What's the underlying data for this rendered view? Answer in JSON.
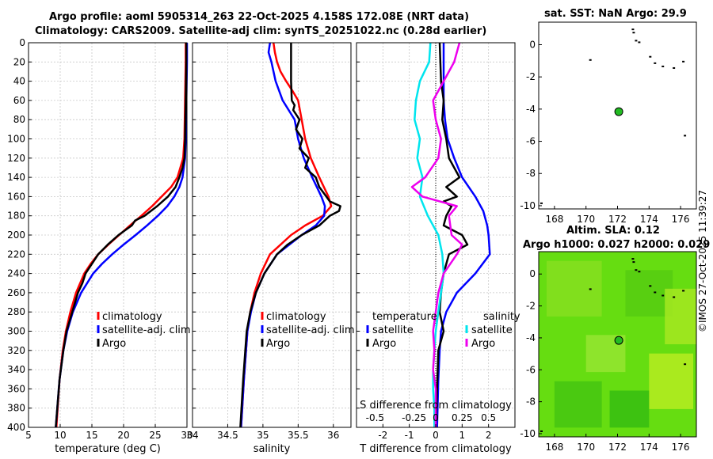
{
  "header": {
    "title_line1": "Argo profile: aoml 5905314_263 22-Oct-2025 4.158S 172.08E (NRT data)",
    "title_line2": "Climatology: CARS2009. Satellite-adj clim: synTS_20251022.nc (0.28d earlier)",
    "sst_title": "sat. SST: NaN Argo: 29.9",
    "sla_title1": "Altim. SLA: 0.12",
    "sla_title2": "Argo h1000: 0.027 h2000: 0.029",
    "copyright": "©IMOS 27-Oct-2025 11:39:27"
  },
  "colors": {
    "climatology": "#ff0000",
    "satellite": "#0000ff",
    "argo": "#000000",
    "temp_diff": "#00e5ee",
    "sal_diff": "#ee00ee",
    "float_marker": "#22bb22"
  },
  "chart_data": [
    {
      "type": "line",
      "id": "temperature",
      "xlabel": "temperature (deg C)",
      "ylabel": "depth",
      "xlim": [
        5,
        30
      ],
      "ylim": [
        400,
        0
      ],
      "xticks": [
        5,
        10,
        15,
        20,
        25,
        30
      ],
      "yticks": [
        0,
        20,
        40,
        60,
        80,
        100,
        120,
        140,
        160,
        180,
        200,
        220,
        240,
        260,
        280,
        300,
        320,
        340,
        360,
        380,
        400
      ],
      "legend": [
        "climatology",
        "satellite-adj. clim",
        "Argo"
      ],
      "series": [
        {
          "name": "climatology",
          "depth": [
            0,
            20,
            60,
            100,
            120,
            140,
            150,
            160,
            170,
            180,
            190,
            200,
            210,
            220,
            230,
            240,
            260,
            280,
            300,
            320,
            350,
            400
          ],
          "values": [
            29.8,
            29.8,
            29.7,
            29.6,
            29.4,
            28.5,
            27.5,
            26.0,
            24.5,
            22.8,
            21.0,
            19.3,
            17.6,
            16.0,
            14.8,
            13.8,
            12.5,
            11.6,
            10.9,
            10.4,
            9.9,
            9.4
          ]
        },
        {
          "name": "satellite-adj. clim",
          "depth": [
            0,
            20,
            60,
            100,
            120,
            140,
            150,
            160,
            170,
            180,
            190,
            200,
            210,
            220,
            230,
            240,
            260,
            280,
            300,
            320,
            350,
            400
          ],
          "values": [
            30.0,
            30.0,
            29.9,
            29.8,
            29.7,
            29.3,
            28.8,
            28.0,
            26.9,
            25.4,
            23.7,
            21.9,
            20.0,
            18.2,
            16.6,
            15.2,
            13.3,
            12.0,
            11.1,
            10.5,
            9.9,
            9.3
          ]
        },
        {
          "name": "Argo",
          "depth": [
            0,
            20,
            60,
            100,
            120,
            130,
            140,
            150,
            160,
            170,
            180,
            185,
            190,
            200,
            210,
            220,
            230,
            240,
            250,
            260,
            280,
            300,
            320,
            350,
            400
          ],
          "values": [
            29.9,
            29.9,
            29.8,
            29.7,
            29.6,
            29.3,
            28.8,
            28.2,
            27.0,
            25.3,
            23.3,
            21.8,
            21.3,
            19.2,
            17.5,
            16.0,
            15.0,
            14.0,
            13.5,
            12.8,
            11.9,
            11.0,
            10.5,
            9.9,
            9.3
          ]
        }
      ]
    },
    {
      "type": "line",
      "id": "salinity",
      "xlabel": "salinity",
      "xlim": [
        34,
        36.25
      ],
      "ylim": [
        400,
        0
      ],
      "xticks": [
        34,
        34.5,
        35,
        35.5,
        36
      ],
      "legend": [
        "climatology",
        "satellite-adj. clim",
        "Argo"
      ],
      "series": [
        {
          "name": "climatology",
          "depth": [
            0,
            10,
            20,
            30,
            40,
            50,
            60,
            80,
            100,
            120,
            140,
            160,
            170,
            180,
            190,
            200,
            220,
            240,
            260,
            280,
            300,
            350,
            400
          ],
          "values": [
            35.15,
            35.17,
            35.2,
            35.25,
            35.33,
            35.42,
            35.5,
            35.55,
            35.6,
            35.68,
            35.8,
            35.93,
            35.97,
            35.85,
            35.6,
            35.4,
            35.1,
            34.97,
            34.88,
            34.82,
            34.78,
            34.73,
            34.69
          ]
        },
        {
          "name": "satellite-adj. clim",
          "depth": [
            0,
            10,
            20,
            40,
            60,
            80,
            100,
            120,
            140,
            160,
            170,
            180,
            190,
            200,
            220,
            240,
            260,
            280,
            300,
            350,
            400
          ],
          "values": [
            35.1,
            35.08,
            35.12,
            35.18,
            35.28,
            35.45,
            35.5,
            35.58,
            35.7,
            35.83,
            35.88,
            35.87,
            35.75,
            35.55,
            35.2,
            35.02,
            34.9,
            34.83,
            34.78,
            34.73,
            34.69
          ]
        },
        {
          "name": "Argo",
          "depth": [
            0,
            20,
            40,
            60,
            65,
            70,
            80,
            90,
            100,
            110,
            120,
            130,
            140,
            150,
            160,
            165,
            170,
            175,
            180,
            190,
            200,
            210,
            220,
            240,
            260,
            280,
            300,
            350,
            400
          ],
          "values": [
            35.4,
            35.4,
            35.4,
            35.41,
            35.45,
            35.43,
            35.52,
            35.47,
            35.56,
            35.52,
            35.65,
            35.6,
            35.75,
            35.8,
            35.9,
            35.95,
            36.1,
            36.08,
            35.95,
            35.8,
            35.55,
            35.35,
            35.2,
            35.02,
            34.9,
            34.82,
            34.77,
            34.72,
            34.68
          ]
        }
      ]
    },
    {
      "type": "line",
      "id": "difference",
      "xlabel": "T difference from climatology",
      "xlabel_top": "S difference from climatology",
      "xlim": [
        -3,
        3
      ],
      "ylim": [
        400,
        0
      ],
      "xticks": [
        -2,
        -1,
        0,
        1,
        2
      ],
      "sticks_labels": [
        "-0.5",
        "-0.25",
        "0",
        "0.25",
        "0.5"
      ],
      "sticks_at_t": [
        -2,
        -1,
        0,
        1,
        2
      ],
      "legend_temperature_title": "temperature",
      "legend_salinity_title": "salinity",
      "legend_temperature": [
        "satellite",
        "Argo"
      ],
      "legend_salinity": [
        "satellite",
        "Argo"
      ],
      "series": [
        {
          "name": "T satellite",
          "depth": [
            0,
            40,
            60,
            80,
            100,
            120,
            140,
            160,
            175,
            190,
            200,
            220,
            240,
            260,
            280,
            300,
            320,
            350,
            400
          ],
          "values": [
            0.3,
            0.3,
            0.3,
            0.35,
            0.45,
            0.7,
            1.0,
            1.5,
            1.8,
            1.95,
            2.0,
            2.05,
            1.5,
            0.8,
            0.4,
            0.2,
            0.15,
            0.1,
            0.05
          ]
        },
        {
          "name": "T Argo",
          "depth": [
            0,
            40,
            60,
            80,
            100,
            120,
            140,
            150,
            160,
            165,
            170,
            180,
            190,
            200,
            210,
            220,
            240,
            260,
            280,
            300,
            320,
            360,
            400
          ],
          "values": [
            0.15,
            0.2,
            0.3,
            0.25,
            0.4,
            0.5,
            0.9,
            0.4,
            0.8,
            0.3,
            0.6,
            0.4,
            0.3,
            1.0,
            1.2,
            0.5,
            0.3,
            0.2,
            0.15,
            0.3,
            0.1,
            0.05,
            0.0
          ]
        },
        {
          "name": "S satellite",
          "depth": [
            0,
            20,
            40,
            60,
            80,
            100,
            120,
            140,
            160,
            180,
            200,
            220,
            240,
            260,
            280,
            300,
            320,
            340,
            360,
            380,
            400
          ],
          "values": [
            -0.2,
            -0.25,
            -0.6,
            -0.75,
            -0.8,
            -0.6,
            -0.7,
            -0.5,
            -0.6,
            -0.3,
            0.1,
            0.25,
            0.3,
            0.2,
            0.1,
            0.0,
            -0.05,
            -0.1,
            -0.1,
            -0.05,
            -0.05
          ]
        },
        {
          "name": "S Argo",
          "depth": [
            0,
            20,
            40,
            60,
            80,
            100,
            120,
            140,
            150,
            160,
            170,
            180,
            200,
            210,
            220,
            240,
            260,
            280,
            300,
            320,
            340,
            360,
            380,
            400
          ],
          "values": [
            0.9,
            0.7,
            0.3,
            -0.1,
            0.0,
            0.2,
            0.1,
            -0.4,
            -0.9,
            -0.5,
            0.8,
            0.5,
            0.6,
            1.0,
            0.8,
            0.3,
            0.1,
            0.0,
            -0.1,
            -0.05,
            -0.1,
            0.0,
            0.0,
            0.0
          ]
        }
      ]
    },
    {
      "type": "map",
      "id": "sst-map",
      "title": "sat. SST: NaN Argo: 29.9",
      "xlim": [
        167,
        177
      ],
      "ylim": [
        -10.2,
        1.4
      ],
      "xticks": [
        168,
        170,
        172,
        174,
        176
      ],
      "yticks": [
        0,
        -2,
        -4,
        -6,
        -8,
        -10
      ],
      "float_position": [
        172.08,
        -4.158
      ]
    },
    {
      "type": "map",
      "id": "sla-map",
      "title": "Altim. SLA: 0.12",
      "xlim": [
        167,
        177
      ],
      "ylim": [
        -10.2,
        1.4
      ],
      "xticks": [
        168,
        170,
        172,
        174,
        176
      ],
      "yticks": [
        0,
        -2,
        -4,
        -6,
        -8,
        -10
      ],
      "float_position": [
        172.08,
        -4.158
      ]
    }
  ]
}
